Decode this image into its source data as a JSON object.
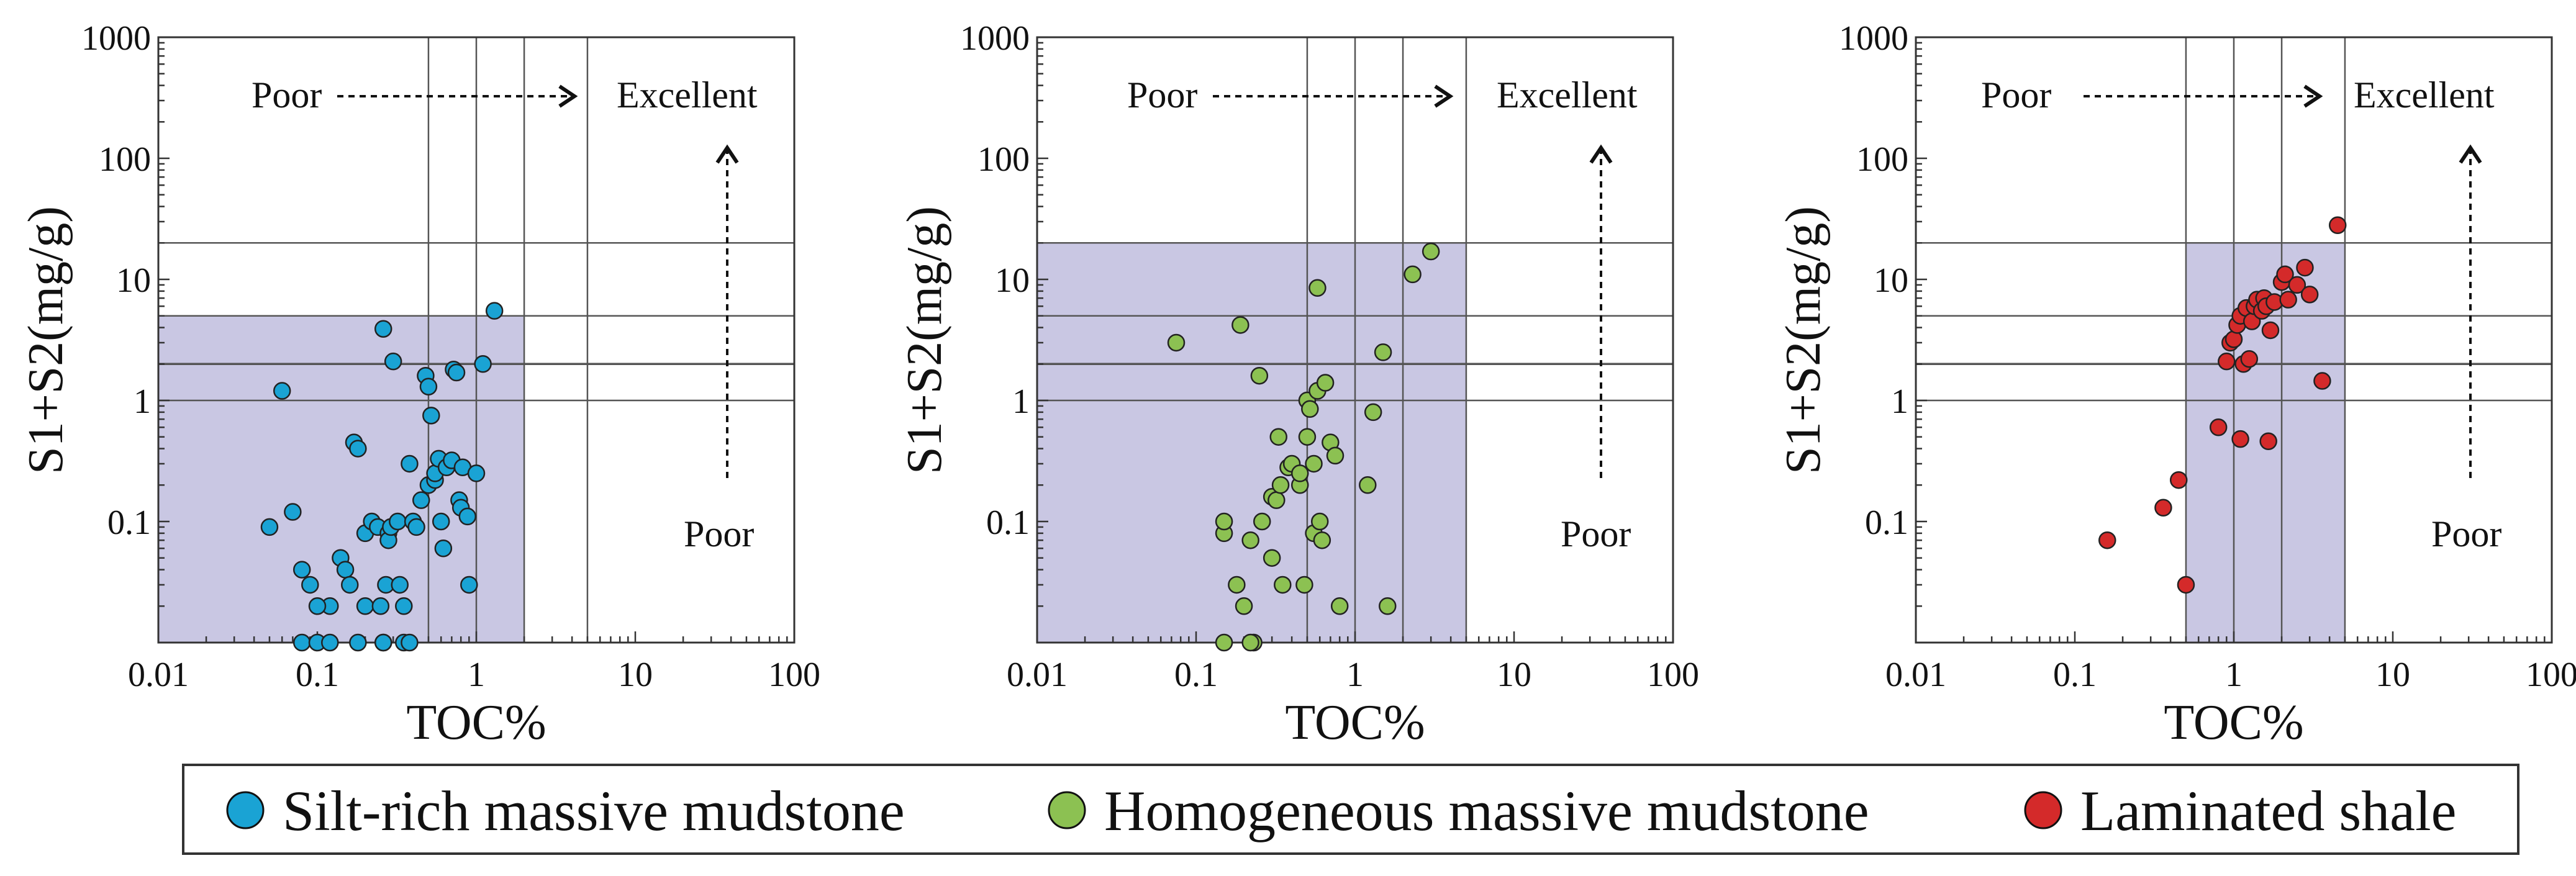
{
  "figure": {
    "legend": [
      {
        "label": "Silt-rich massive mudstone",
        "color": "#1aa3d4"
      },
      {
        "label": "Homogeneous massive mudstone",
        "color": "#8cc152"
      },
      {
        "label": "Laminated shale",
        "color": "#d42a2a"
      }
    ],
    "shade_color": "#c9c7e3",
    "annotations": {
      "poor": "Poor",
      "excellent": "Excellent"
    }
  },
  "chart_data": [
    {
      "type": "scatter",
      "xlabel": "TOC%",
      "ylabel": "S1+S2(mg/g)",
      "xscale": "log",
      "yscale": "log",
      "xlim": [
        0.01,
        100
      ],
      "ylim": [
        0.01,
        1000
      ],
      "xticks": [
        "0.01",
        "0.1",
        "1",
        "10",
        "100"
      ],
      "yticks": [
        "0.1",
        "1",
        "10",
        "100",
        "1000"
      ],
      "vlines": [
        0.5,
        1,
        2,
        5
      ],
      "hlines": [
        1,
        2,
        5,
        20
      ],
      "shaded_region": {
        "x": [
          0.01,
          2
        ],
        "y": [
          0.01,
          5
        ]
      },
      "series": [
        {
          "name": "Silt-rich massive mudstone",
          "points": [
            [
              0.06,
              1.2
            ],
            [
              0.05,
              0.09
            ],
            [
              0.07,
              0.12
            ],
            [
              0.08,
              0.04
            ],
            [
              0.09,
              0.03
            ],
            [
              0.08,
              0.01
            ],
            [
              0.1,
              0.01
            ],
            [
              0.12,
              0.02
            ],
            [
              0.14,
              0.05
            ],
            [
              0.15,
              0.04
            ],
            [
              0.16,
              0.03
            ],
            [
              0.17,
              0.45
            ],
            [
              0.18,
              0.4
            ],
            [
              0.18,
              0.01
            ],
            [
              0.2,
              0.02
            ],
            [
              0.2,
              0.08
            ],
            [
              0.22,
              0.1
            ],
            [
              0.24,
              0.09
            ],
            [
              0.25,
              0.02
            ],
            [
              0.26,
              0.01
            ],
            [
              0.27,
              0.03
            ],
            [
              0.28,
              0.08
            ],
            [
              0.28,
              0.07
            ],
            [
              0.29,
              0.09
            ],
            [
              0.3,
              2.1
            ],
            [
              0.32,
              0.1
            ],
            [
              0.33,
              0.03
            ],
            [
              0.35,
              0.02
            ],
            [
              0.35,
              0.01
            ],
            [
              0.38,
              0.3
            ],
            [
              0.4,
              0.1
            ],
            [
              0.42,
              0.09
            ],
            [
              0.45,
              0.15
            ],
            [
              0.48,
              1.6
            ],
            [
              0.5,
              1.3
            ],
            [
              0.5,
              0.2
            ],
            [
              0.52,
              0.75
            ],
            [
              0.55,
              0.22
            ],
            [
              0.55,
              0.25
            ],
            [
              0.58,
              0.33
            ],
            [
              0.6,
              0.1
            ],
            [
              0.62,
              0.06
            ],
            [
              0.65,
              0.28
            ],
            [
              0.7,
              0.32
            ],
            [
              0.72,
              1.8
            ],
            [
              0.75,
              1.7
            ],
            [
              0.78,
              0.15
            ],
            [
              0.8,
              0.13
            ],
            [
              0.82,
              0.28
            ],
            [
              0.88,
              0.11
            ],
            [
              0.9,
              0.03
            ],
            [
              1.0,
              0.25
            ],
            [
              1.1,
              2.0
            ],
            [
              1.3,
              5.5
            ],
            [
              0.26,
              3.9
            ],
            [
              0.26,
              0.01
            ],
            [
              0.1,
              0.02
            ],
            [
              0.12,
              0.01
            ],
            [
              0.38,
              0.01
            ]
          ]
        }
      ]
    },
    {
      "type": "scatter",
      "xlabel": "TOC%",
      "ylabel": "S1+S2(mg/g)",
      "xscale": "log",
      "yscale": "log",
      "xlim": [
        0.01,
        100
      ],
      "ylim": [
        0.01,
        1000
      ],
      "xticks": [
        "0.01",
        "0.1",
        "1",
        "10",
        "100"
      ],
      "yticks": [
        "0.1",
        "1",
        "10",
        "100",
        "1000"
      ],
      "vlines": [
        0.5,
        1,
        2,
        5
      ],
      "hlines": [
        1,
        2,
        5,
        20
      ],
      "shaded_region": {
        "x": [
          0.01,
          5
        ],
        "y": [
          0.01,
          20
        ]
      },
      "series": [
        {
          "name": "Homogeneous massive mudstone",
          "points": [
            [
              0.075,
              3.0
            ],
            [
              0.15,
              0.08
            ],
            [
              0.15,
              0.1
            ],
            [
              0.18,
              0.03
            ],
            [
              0.19,
              4.2
            ],
            [
              0.2,
              0.02
            ],
            [
              0.22,
              0.07
            ],
            [
              0.23,
              0.01
            ],
            [
              0.25,
              1.6
            ],
            [
              0.26,
              0.1
            ],
            [
              0.3,
              0.05
            ],
            [
              0.3,
              0.16
            ],
            [
              0.32,
              0.15
            ],
            [
              0.33,
              0.5
            ],
            [
              0.34,
              0.2
            ],
            [
              0.35,
              0.03
            ],
            [
              0.38,
              0.28
            ],
            [
              0.4,
              0.3
            ],
            [
              0.45,
              0.2
            ],
            [
              0.45,
              0.25
            ],
            [
              0.48,
              0.03
            ],
            [
              0.5,
              0.5
            ],
            [
              0.5,
              1.0
            ],
            [
              0.52,
              0.85
            ],
            [
              0.55,
              0.3
            ],
            [
              0.55,
              0.08
            ],
            [
              0.58,
              1.2
            ],
            [
              0.58,
              8.5
            ],
            [
              0.6,
              0.1
            ],
            [
              0.62,
              0.07
            ],
            [
              0.65,
              1.4
            ],
            [
              0.7,
              0.45
            ],
            [
              0.75,
              0.35
            ],
            [
              0.8,
              0.02
            ],
            [
              1.2,
              0.2
            ],
            [
              1.3,
              0.8
            ],
            [
              1.5,
              2.5
            ],
            [
              1.6,
              0.02
            ],
            [
              2.3,
              11.0
            ],
            [
              3.0,
              17.0
            ],
            [
              0.15,
              0.01
            ],
            [
              0.22,
              0.01
            ]
          ]
        }
      ]
    },
    {
      "type": "scatter",
      "xlabel": "TOC%",
      "ylabel": "S1+S2(mg/g)",
      "xscale": "log",
      "yscale": "log",
      "xlim": [
        0.01,
        100
      ],
      "ylim": [
        0.01,
        1000
      ],
      "xticks": [
        "0.01",
        "0.1",
        "1",
        "10",
        "100"
      ],
      "yticks": [
        "0.1",
        "1",
        "10",
        "100",
        "1000"
      ],
      "vlines": [
        0.5,
        1,
        2,
        5
      ],
      "hlines": [
        1,
        2,
        5,
        20
      ],
      "shaded_region": {
        "x": [
          0.5,
          5
        ],
        "y": [
          0.01,
          20
        ]
      },
      "series": [
        {
          "name": "Laminated shale",
          "points": [
            [
              0.16,
              0.07
            ],
            [
              0.36,
              0.13
            ],
            [
              0.45,
              0.22
            ],
            [
              0.5,
              0.03
            ],
            [
              0.8,
              0.6
            ],
            [
              0.9,
              2.1
            ],
            [
              0.95,
              3.0
            ],
            [
              1.0,
              3.2
            ],
            [
              1.05,
              4.2
            ],
            [
              1.1,
              0.48
            ],
            [
              1.1,
              5.0
            ],
            [
              1.15,
              2.0
            ],
            [
              1.2,
              5.8
            ],
            [
              1.25,
              2.2
            ],
            [
              1.3,
              4.5
            ],
            [
              1.35,
              6.0
            ],
            [
              1.4,
              6.8
            ],
            [
              1.5,
              5.5
            ],
            [
              1.55,
              7.0
            ],
            [
              1.6,
              6.0
            ],
            [
              1.65,
              0.46
            ],
            [
              1.7,
              3.8
            ],
            [
              1.8,
              6.5
            ],
            [
              2.0,
              9.5
            ],
            [
              2.1,
              11.0
            ],
            [
              2.2,
              6.8
            ],
            [
              2.5,
              9.0
            ],
            [
              2.8,
              12.5
            ],
            [
              3.0,
              7.5
            ],
            [
              3.6,
              1.45
            ],
            [
              4.5,
              28.0
            ]
          ]
        }
      ]
    }
  ]
}
